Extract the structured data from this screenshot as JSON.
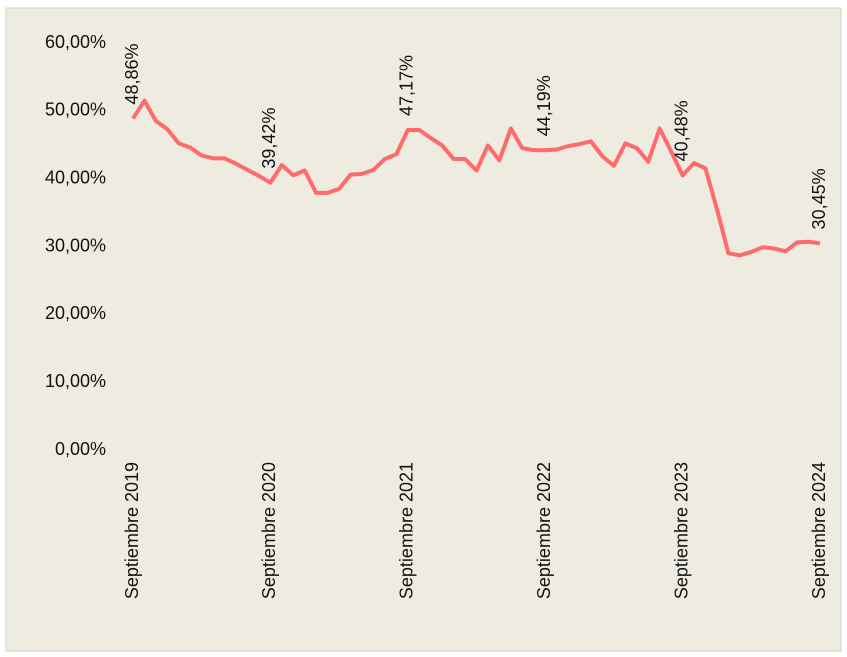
{
  "chart_data": {
    "type": "line",
    "categories": [
      "Septiembre 2019",
      null,
      null,
      null,
      null,
      null,
      null,
      null,
      null,
      null,
      null,
      null,
      "Septiembre 2020",
      null,
      null,
      null,
      null,
      null,
      null,
      null,
      null,
      null,
      null,
      null,
      "Septiembre 2021",
      null,
      null,
      null,
      null,
      null,
      null,
      null,
      null,
      null,
      null,
      null,
      "Septiembre 2022",
      null,
      null,
      null,
      null,
      null,
      null,
      null,
      null,
      null,
      null,
      null,
      "Septiembre 2023",
      null,
      null,
      null,
      null,
      null,
      null,
      null,
      null,
      null,
      null,
      null,
      "Septiembre 2024"
    ],
    "series": [
      {
        "color": "#ff6b6b",
        "values": [
          48.86,
          51.5,
          48.5,
          47.3,
          45.2,
          44.6,
          43.4,
          43.0,
          43.0,
          42.2,
          41.3,
          40.4,
          39.42,
          42.0,
          40.5,
          41.2,
          37.9,
          37.9,
          38.5,
          40.6,
          40.7,
          41.3,
          42.9,
          43.6,
          47.17,
          47.2,
          46.0,
          44.9,
          42.9,
          42.9,
          41.2,
          44.9,
          42.7,
          47.4,
          44.5,
          44.2,
          44.19,
          44.3,
          44.8,
          45.1,
          45.5,
          43.3,
          41.9,
          45.2,
          44.5,
          42.5,
          47.4,
          44.0,
          40.48,
          42.3,
          41.5,
          35.5,
          29.0,
          28.7,
          29.2,
          29.9,
          29.7,
          29.3,
          30.6,
          30.7,
          30.45
        ],
        "value_labels": [
          "48,86%",
          null,
          null,
          null,
          null,
          null,
          null,
          null,
          null,
          null,
          null,
          null,
          "39,42%",
          null,
          null,
          null,
          null,
          null,
          null,
          null,
          null,
          null,
          null,
          null,
          "47,17%",
          null,
          null,
          null,
          null,
          null,
          null,
          null,
          null,
          null,
          null,
          null,
          "44,19%",
          null,
          null,
          null,
          null,
          null,
          null,
          null,
          null,
          null,
          null,
          null,
          "40,48%",
          null,
          null,
          null,
          null,
          null,
          null,
          null,
          null,
          null,
          null,
          null,
          "30,45%"
        ]
      }
    ],
    "ylim": [
      0,
      60
    ],
    "yticks": [
      {
        "value": 0,
        "label": "0,00%"
      },
      {
        "value": 10,
        "label": "10,00%"
      },
      {
        "value": 20,
        "label": "20,00%"
      },
      {
        "value": 30,
        "label": "30,00%"
      },
      {
        "value": 40,
        "label": "40,00%"
      },
      {
        "value": 50,
        "label": "50,00%"
      },
      {
        "value": 60,
        "label": "60,00%"
      }
    ],
    "grid": false
  }
}
